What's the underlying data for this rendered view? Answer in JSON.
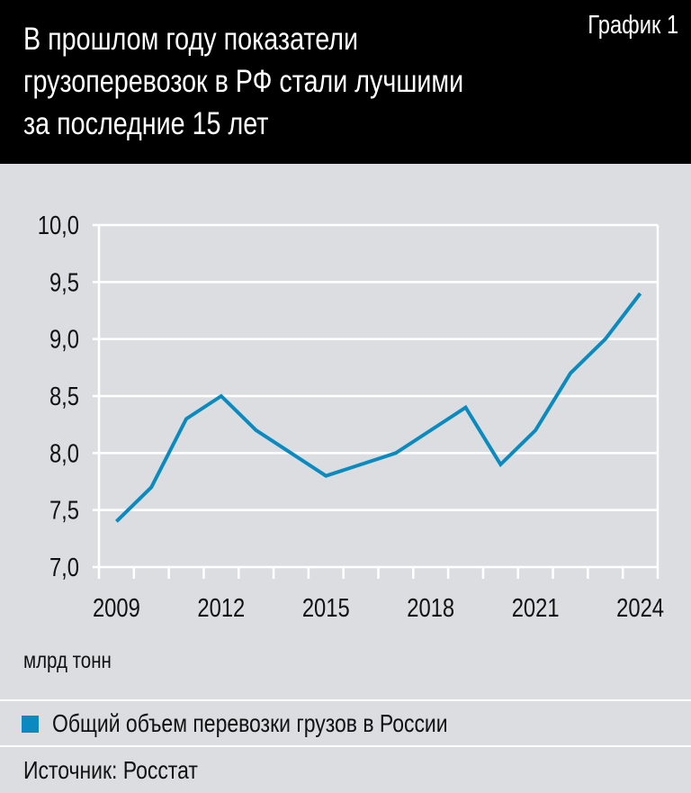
{
  "header": {
    "title_lines": [
      "В прошлом году показатели",
      "грузоперевозок в РФ стали лучшими",
      "за последние 15 лет"
    ],
    "chart_label": "График 1"
  },
  "unit_label": "млрд тонн",
  "legend": {
    "label": "Общий объем перевозки грузов в России",
    "color": "#0a8abf"
  },
  "source": "Источник: Росстат",
  "chart_data": {
    "type": "line",
    "title": "В прошлом году показатели грузоперевозок в РФ стали лучшими за последние 15 лет",
    "xlabel": "",
    "ylabel": "млрд тонн",
    "x": [
      2009,
      2010,
      2011,
      2012,
      2013,
      2014,
      2015,
      2016,
      2017,
      2018,
      2019,
      2020,
      2021,
      2022,
      2023,
      2024
    ],
    "x_tick_labels": [
      "2009",
      "2012",
      "2015",
      "2018",
      "2021",
      "2024"
    ],
    "y_tick_labels": [
      "10,0",
      "9,5",
      "9,0",
      "8,5",
      "8,0",
      "7,5",
      "7,0"
    ],
    "ylim": [
      7.0,
      10.0
    ],
    "grid": "horizontal",
    "legend_position": "bottom",
    "series": [
      {
        "name": "Общий объем перевозки грузов в России",
        "color": "#0a8abf",
        "values": [
          7.4,
          7.7,
          8.3,
          8.5,
          8.2,
          8.0,
          7.8,
          7.9,
          8.0,
          8.2,
          8.4,
          7.9,
          8.2,
          8.7,
          9.0,
          9.4
        ]
      }
    ]
  }
}
